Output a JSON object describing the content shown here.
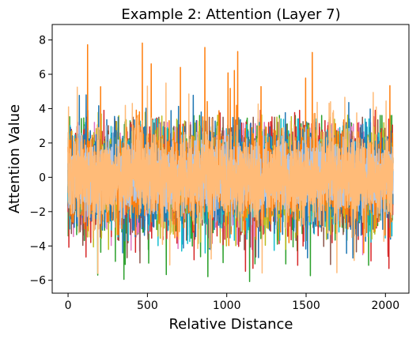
{
  "chart_data": {
    "type": "line",
    "title": "Example 2: Attention (Layer 7)",
    "xlabel": "Relative Distance",
    "ylabel": "Attention Value",
    "xlim": [
      -100,
      2148
    ],
    "ylim": [
      -6.75,
      8.9
    ],
    "x_ticks": [
      0,
      500,
      1000,
      1500,
      2000
    ],
    "y_ticks": [
      -6,
      -4,
      -2,
      0,
      2,
      4,
      6,
      8
    ],
    "grid": false,
    "legend": "none",
    "n_points": 2048,
    "series": [
      {
        "color": "#2ca02c",
        "amplitude": 1.35,
        "peak_max": 3.6,
        "peak_min": -6.1,
        "values": []
      },
      {
        "color": "#e377c2",
        "amplitude": 1.3,
        "peak_max": 3.2,
        "peak_min": -4.8,
        "values": []
      },
      {
        "color": "#d62728",
        "amplitude": 1.35,
        "peak_max": 3.9,
        "peak_min": -5.6,
        "values": []
      },
      {
        "color": "#8c564b",
        "amplitude": 1.3,
        "peak_max": 3.5,
        "peak_min": -5.2,
        "values": []
      },
      {
        "color": "#17becf",
        "amplitude": 1.25,
        "peak_max": 3.4,
        "peak_min": -4.6,
        "values": []
      },
      {
        "color": "#bcbd22",
        "amplitude": 1.25,
        "peak_max": 3.8,
        "peak_min": -4.2,
        "values": []
      },
      {
        "color": "#1f77b4",
        "amplitude": 1.35,
        "peak_max": 4.8,
        "peak_min": -4.9,
        "values": []
      },
      {
        "color": "#ff7f0e",
        "amplitude": 1.3,
        "peak_max": 8.2,
        "peak_min": -4.4,
        "values": []
      },
      {
        "color": "#aec7e8",
        "amplitude": 1.0,
        "peak_max": 3.0,
        "peak_min": -3.2,
        "values": []
      },
      {
        "color": "#ffbb78",
        "amplitude": 1.15,
        "peak_max": 5.7,
        "peak_min": -5.6,
        "values": []
      }
    ]
  }
}
